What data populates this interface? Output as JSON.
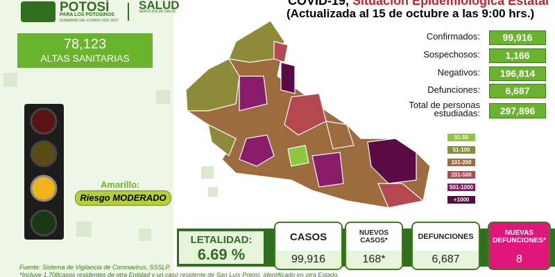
{
  "header": {
    "brand": "POTOSÍ",
    "brand_sub": "PARA LOS POTOSINOS",
    "brand_gov": "GOBIERNO DEL ESTADO 2021-2027",
    "health": "SALUD",
    "health_sub": "SERVICIOS DE SALUD"
  },
  "title": {
    "lead": "COVID-19,",
    "main": "Situación Epidemiológica Estatal",
    "updated": "(Actualizada al 15 de octubre a las 9:00 hrs.)"
  },
  "recovered": {
    "value": "78,123",
    "label": "ALTAS SANITARIAS"
  },
  "traffic_light": {
    "color": "Amarillo:",
    "risk": "Riesgo MODERADO"
  },
  "stats": [
    {
      "label": "Confirmados:",
      "value": "99,916"
    },
    {
      "label": "Sospechosos:",
      "value": "1,166"
    },
    {
      "label": "Negativos:",
      "value": "196,814"
    },
    {
      "label": "Defunciones:",
      "value": "6,687"
    },
    {
      "label": "Total de personas estudiadas:",
      "value": "297,896"
    }
  ],
  "legend": [
    {
      "label": "01-50",
      "color": "#8dc63f"
    },
    {
      "label": "51-100",
      "color": "#8d8a3a"
    },
    {
      "label": "101-200",
      "color": "#9c6b3e"
    },
    {
      "label": "201-500",
      "color": "#b5474f"
    },
    {
      "label": "501-1000",
      "color": "#8a1d6b"
    },
    {
      "label": "+1000",
      "color": "#5a0a45"
    }
  ],
  "summary": {
    "lethality_label": "LETALIDAD:",
    "lethality_value": "6.69 %",
    "cards": [
      {
        "title": "CASOS",
        "value": "99,916"
      },
      {
        "title": "NUEVOS CASOS*",
        "value": "168*"
      },
      {
        "title": "DEFUNCIONES",
        "value": "6,687"
      },
      {
        "title": "NUEVAS DEFUNCIONES*",
        "value": "8"
      }
    ]
  },
  "footer": {
    "source": "Fuente: Sistema de Vigilancia de Coronavirus, SSSLP.",
    "note": "*Incluye 1,708casos residentes de otra Entidad y un caso residente de San Luis Potosí, identificado en otra Estado."
  }
}
